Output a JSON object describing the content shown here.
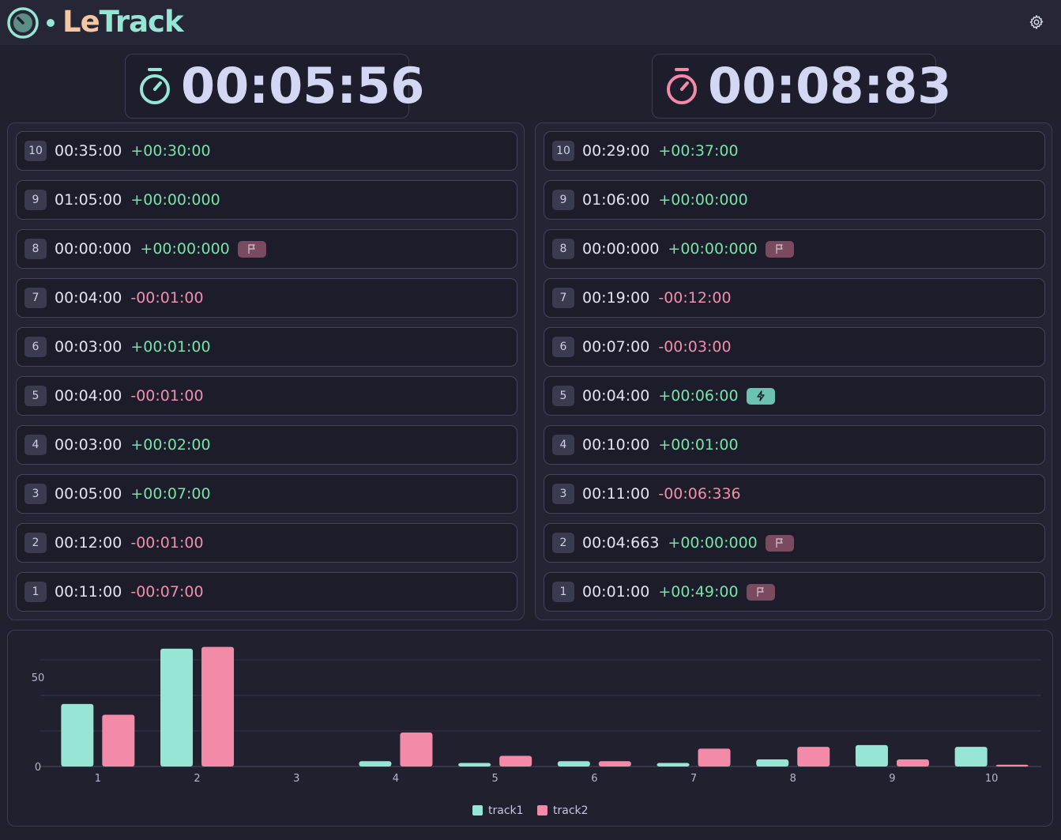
{
  "app": {
    "title_le": "Le",
    "title_track": "Track"
  },
  "colors": {
    "track1": "#97e5d5",
    "track2": "#f28aa8",
    "positive": "#79e3a8",
    "negative": "#f08fae"
  },
  "header": {
    "settings_icon": "gear-icon"
  },
  "timers": [
    {
      "value": "00:05:56",
      "icon": "stopwatch-icon"
    },
    {
      "value": "00:08:83",
      "icon": "stopwatch-icon"
    }
  ],
  "tracks": [
    {
      "laps": [
        {
          "num": "10",
          "time": "00:35:00",
          "delta": "+00:30:00",
          "sign": "pos",
          "badge": null
        },
        {
          "num": "9",
          "time": "01:05:00",
          "delta": "+00:00:000",
          "sign": "pos",
          "badge": null
        },
        {
          "num": "8",
          "time": "00:00:000",
          "delta": "+00:00:000",
          "sign": "pos",
          "badge": "flag-icon"
        },
        {
          "num": "7",
          "time": "00:04:00",
          "delta": "-00:01:00",
          "sign": "neg",
          "badge": null
        },
        {
          "num": "6",
          "time": "00:03:00",
          "delta": "+00:01:00",
          "sign": "pos",
          "badge": null
        },
        {
          "num": "5",
          "time": "00:04:00",
          "delta": "-00:01:00",
          "sign": "neg",
          "badge": null
        },
        {
          "num": "4",
          "time": "00:03:00",
          "delta": "+00:02:00",
          "sign": "pos",
          "badge": null
        },
        {
          "num": "3",
          "time": "00:05:00",
          "delta": "+00:07:00",
          "sign": "pos",
          "badge": null
        },
        {
          "num": "2",
          "time": "00:12:00",
          "delta": "-00:01:00",
          "sign": "neg",
          "badge": null
        },
        {
          "num": "1",
          "time": "00:11:00",
          "delta": "-00:07:00",
          "sign": "neg",
          "badge": null
        }
      ]
    },
    {
      "laps": [
        {
          "num": "10",
          "time": "00:29:00",
          "delta": "+00:37:00",
          "sign": "pos",
          "badge": null
        },
        {
          "num": "9",
          "time": "01:06:00",
          "delta": "+00:00:000",
          "sign": "pos",
          "badge": null
        },
        {
          "num": "8",
          "time": "00:00:000",
          "delta": "+00:00:000",
          "sign": "pos",
          "badge": "flag-icon"
        },
        {
          "num": "7",
          "time": "00:19:00",
          "delta": "-00:12:00",
          "sign": "neg",
          "badge": null
        },
        {
          "num": "6",
          "time": "00:07:00",
          "delta": "-00:03:00",
          "sign": "neg",
          "badge": null
        },
        {
          "num": "5",
          "time": "00:04:00",
          "delta": "+00:06:00",
          "sign": "pos",
          "badge": "bolt-icon"
        },
        {
          "num": "4",
          "time": "00:10:00",
          "delta": "+00:01:00",
          "sign": "pos",
          "badge": null
        },
        {
          "num": "3",
          "time": "00:11:00",
          "delta": "-00:06:336",
          "sign": "neg",
          "badge": null
        },
        {
          "num": "2",
          "time": "00:04:663",
          "delta": "+00:00:000",
          "sign": "pos",
          "badge": "flag-icon"
        },
        {
          "num": "1",
          "time": "00:01:00",
          "delta": "+00:49:00",
          "sign": "pos",
          "badge": "flag-icon"
        }
      ]
    }
  ],
  "chart_data": {
    "type": "bar",
    "categories": [
      "1",
      "2",
      "3",
      "4",
      "5",
      "6",
      "7",
      "8",
      "9",
      "10"
    ],
    "series": [
      {
        "name": "track1",
        "values": [
          35,
          66,
          0,
          3,
          2,
          3,
          2,
          4,
          12,
          11
        ]
      },
      {
        "name": "track2",
        "values": [
          29,
          67,
          0,
          19,
          6,
          3,
          10,
          11,
          4,
          1
        ]
      }
    ],
    "yticks": [
      "0",
      "50"
    ],
    "ylim": [
      0,
      70
    ],
    "grid": true,
    "legend": "bottom-center"
  }
}
